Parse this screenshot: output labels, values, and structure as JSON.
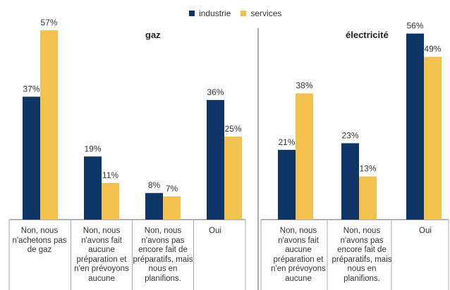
{
  "legend": {
    "industrie": "industrie",
    "services": "services"
  },
  "colors": {
    "industrie": "#0e3566",
    "services": "#f2c14e",
    "axis": "#666666"
  },
  "chart_data": [
    {
      "type": "bar",
      "title": "gaz",
      "categories": [
        "Non, nous n'achetons pas de gaz",
        "Non, nous n'avons fait aucune préparation et n'en prévoyons aucune",
        "Non, nous n'avons pas encore fait de préparatifs, mais nous en planifions.",
        "Oui"
      ],
      "series": [
        {
          "name": "industrie",
          "values": [
            37,
            19,
            8,
            36
          ],
          "labels": [
            "37%",
            "19%",
            "8%",
            "36%"
          ]
        },
        {
          "name": "services",
          "values": [
            57,
            11,
            7,
            25
          ],
          "labels": [
            "57%",
            "11%",
            "7%",
            "25%"
          ]
        }
      ],
      "ylim": [
        0,
        60
      ]
    },
    {
      "type": "bar",
      "title": "électricité",
      "categories": [
        "Non, nous n'avons fait aucune préparation et n'en prévoyons aucune",
        "Non, nous n'avons pas encore fait de préparatifs, mais nous en planifions.",
        "Oui"
      ],
      "series": [
        {
          "name": "industrie",
          "values": [
            21,
            23,
            56
          ],
          "labels": [
            "21%",
            "23%",
            "56%"
          ]
        },
        {
          "name": "services",
          "values": [
            38,
            13,
            49
          ],
          "labels": [
            "38%",
            "13%",
            "49%"
          ]
        }
      ],
      "ylim": [
        0,
        60
      ]
    }
  ]
}
